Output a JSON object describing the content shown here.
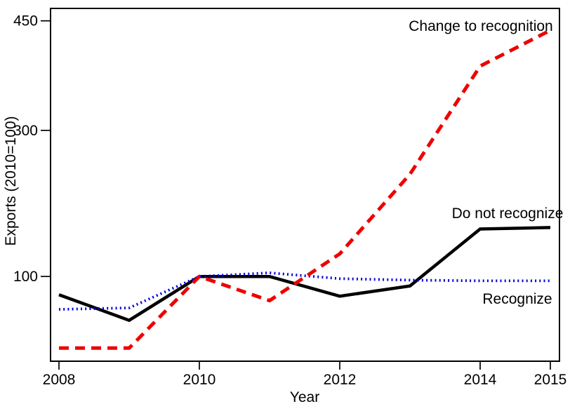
{
  "chart_data": {
    "type": "line",
    "title": "",
    "xlabel": "Year",
    "ylabel": "Exports (2010=100)",
    "x": [
      2008,
      2009,
      2010,
      2011,
      2012,
      2013,
      2014,
      2015
    ],
    "xticks": [
      2008,
      2010,
      2012,
      2014,
      2015
    ],
    "yticks": [
      100,
      300,
      450
    ],
    "xlim": [
      2007.88,
      2015.13
    ],
    "ylim": [
      -16,
      467
    ],
    "grid": false,
    "legend_position": "inline-annotations",
    "series": [
      {
        "name": "Do not recognize",
        "color": "#000000",
        "line_style": "solid",
        "values": [
          75,
          40,
          100,
          100,
          73,
          87,
          165,
          167
        ]
      },
      {
        "name": "Recognize",
        "color": "#0000dd",
        "line_style": "dotted",
        "values": [
          55,
          57,
          100,
          105,
          97,
          95,
          94,
          94
        ]
      },
      {
        "name": "Change to recognition",
        "color": "#ee0000",
        "line_style": "dashed",
        "values": [
          2,
          2,
          100,
          67,
          131,
          240,
          388,
          437
        ]
      }
    ]
  }
}
